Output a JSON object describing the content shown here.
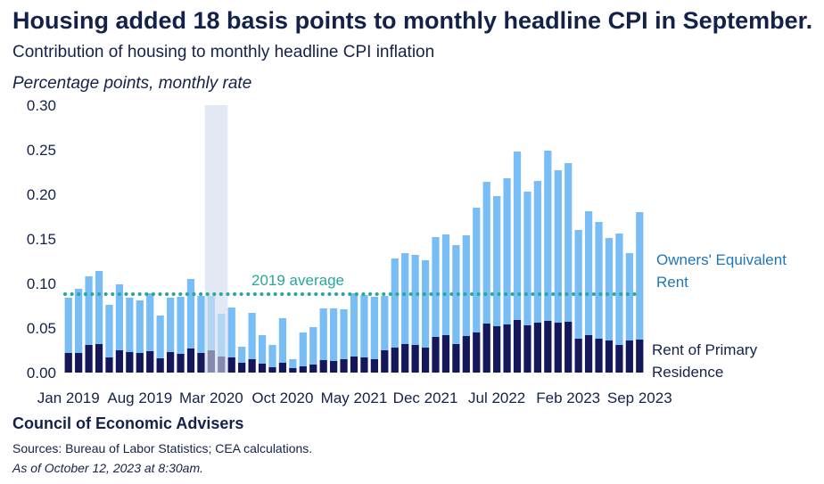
{
  "header": {
    "title": "Housing added 18 basis points to monthly headline CPI in September.",
    "subtitle": "Contribution of housing to monthly headline CPI inflation",
    "units": "Percentage points, monthly rate"
  },
  "footer": {
    "org": "Council of Economic Advisers",
    "sources": "Sources: Bureau of Labor Statistics; CEA calculations.",
    "as_of": "As of October 12, 2023 at 8:30am."
  },
  "colors": {
    "oer": "#78bdf5",
    "rent": "#14175a",
    "average": "#2aa79b",
    "shade": "#e2e9f4",
    "label_oer": "#2176b8",
    "label_rent": "#14224a",
    "text": "#14224a"
  },
  "chart_data": {
    "type": "bar",
    "stacked": true,
    "ylim": [
      0,
      0.3
    ],
    "yticks": [
      "0.00",
      "0.05",
      "0.10",
      "0.15",
      "0.20",
      "0.25",
      "0.30"
    ],
    "xtick_labels": [
      "Jan 2019",
      "Aug 2019",
      "Mar 2020",
      "Oct 2020",
      "May 2021",
      "Dec 2021",
      "Jul 2022",
      "Feb 2023",
      "Sep 2023"
    ],
    "xtick_indices": [
      0,
      7,
      14,
      21,
      28,
      35,
      42,
      49,
      56
    ],
    "shaded_months": [
      14,
      15
    ],
    "months": [
      "Jan 2019",
      "Feb 2019",
      "Mar 2019",
      "Apr 2019",
      "May 2019",
      "Jun 2019",
      "Jul 2019",
      "Aug 2019",
      "Sep 2019",
      "Oct 2019",
      "Nov 2019",
      "Dec 2019",
      "Jan 2020",
      "Feb 2020",
      "Mar 2020",
      "Apr 2020",
      "May 2020",
      "Jun 2020",
      "Jul 2020",
      "Aug 2020",
      "Sep 2020",
      "Oct 2020",
      "Nov 2020",
      "Dec 2020",
      "Jan 2021",
      "Feb 2021",
      "Mar 2021",
      "Apr 2021",
      "May 2021",
      "Jun 2021",
      "Jul 2021",
      "Aug 2021",
      "Sep 2021",
      "Oct 2021",
      "Nov 2021",
      "Dec 2021",
      "Jan 2022",
      "Feb 2022",
      "Mar 2022",
      "Apr 2022",
      "May 2022",
      "Jun 2022",
      "Jul 2022",
      "Aug 2022",
      "Sep 2022",
      "Oct 2022",
      "Nov 2022",
      "Dec 2022",
      "Jan 2023",
      "Feb 2023",
      "Mar 2023",
      "Apr 2023",
      "May 2023",
      "Jun 2023",
      "Jul 2023",
      "Aug 2023",
      "Sep 2023"
    ],
    "series": [
      {
        "name": "Rent of Primary Residence",
        "values": [
          0.022,
          0.022,
          0.031,
          0.032,
          0.017,
          0.025,
          0.023,
          0.022,
          0.024,
          0.016,
          0.023,
          0.021,
          0.027,
          0.022,
          0.025,
          0.018,
          0.017,
          0.011,
          0.015,
          0.01,
          0.006,
          0.011,
          0.005,
          0.007,
          0.009,
          0.014,
          0.013,
          0.015,
          0.018,
          0.017,
          0.015,
          0.025,
          0.028,
          0.032,
          0.031,
          0.028,
          0.04,
          0.042,
          0.032,
          0.041,
          0.045,
          0.055,
          0.052,
          0.054,
          0.059,
          0.053,
          0.056,
          0.058,
          0.056,
          0.057,
          0.038,
          0.042,
          0.038,
          0.036,
          0.031,
          0.036,
          0.037
        ]
      },
      {
        "name": "Owners' Equivalent Rent",
        "values": [
          0.062,
          0.072,
          0.077,
          0.082,
          0.059,
          0.074,
          0.061,
          0.059,
          0.065,
          0.048,
          0.061,
          0.064,
          0.078,
          0.064,
          0.061,
          0.048,
          0.056,
          0.018,
          0.052,
          0.032,
          0.025,
          0.05,
          0.01,
          0.038,
          0.042,
          0.058,
          0.059,
          0.056,
          0.071,
          0.07,
          0.07,
          0.061,
          0.1,
          0.102,
          0.101,
          0.098,
          0.112,
          0.113,
          0.111,
          0.113,
          0.14,
          0.159,
          0.146,
          0.164,
          0.189,
          0.15,
          0.159,
          0.191,
          0.171,
          0.178,
          0.122,
          0.139,
          0.131,
          0.115,
          0.125,
          0.098,
          0.143
        ]
      }
    ],
    "average": {
      "label": "2019 average",
      "value": 0.088
    },
    "series_labels": {
      "oer": [
        "Owners' Equivalent",
        "Rent"
      ],
      "rent": [
        "Rent of Primary",
        "Residence"
      ]
    }
  }
}
